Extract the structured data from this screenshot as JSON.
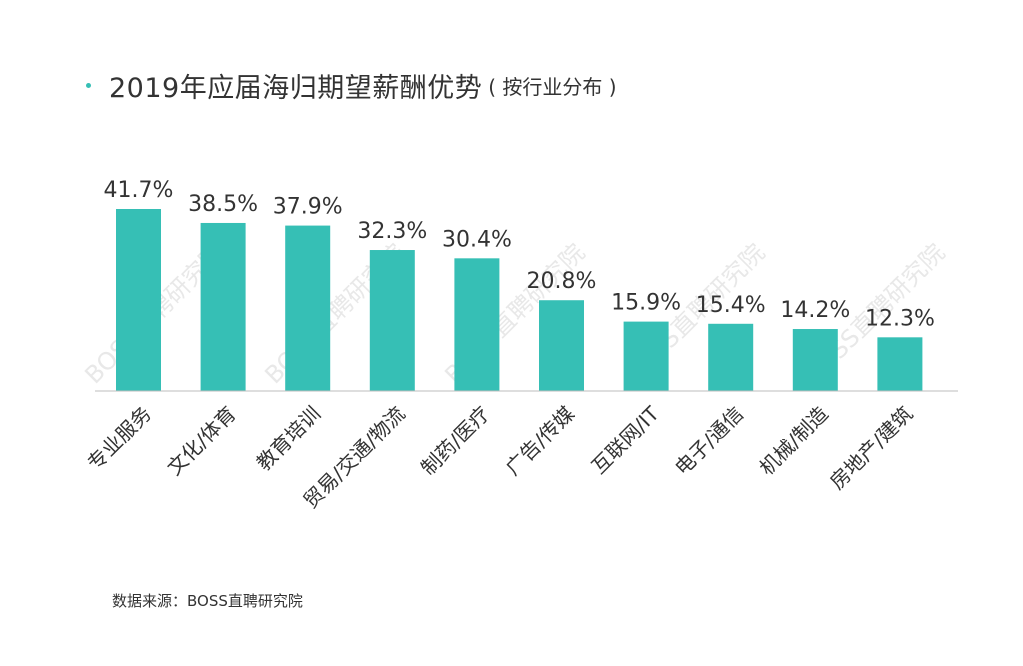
{
  "title": "2019年应届海归期望薪酬优势",
  "subtitle": "( 按行业分布 )",
  "source": "数据来源：BOSS直聘研究院",
  "watermark": "BOSS直聘研究院",
  "colors": {
    "bar": "#36bfb5",
    "axis": "#bdbdbd",
    "text": "#333333",
    "watermark": "#d9d9d9"
  },
  "chart_data": {
    "type": "bar",
    "title": "2019年应届海归期望薪酬优势",
    "subtitle": "( 按行业分布 )",
    "categories": [
      "专业服务",
      "文化/体育",
      "教育培训",
      "贸易/交通/物流",
      "制药/医疗",
      "广告/传媒",
      "互联网/IT",
      "电子/通信",
      "机械/制造",
      "房地产/建筑"
    ],
    "values": [
      41.7,
      38.5,
      37.9,
      32.3,
      30.4,
      20.8,
      15.9,
      15.4,
      14.2,
      12.3
    ],
    "data_labels": [
      "41.7%",
      "38.5%",
      "37.9%",
      "32.3%",
      "30.4%",
      "20.8%",
      "15.9%",
      "15.4%",
      "14.2%",
      "12.3%"
    ],
    "ylim": [
      0,
      50
    ],
    "grid": false,
    "legend": false
  }
}
